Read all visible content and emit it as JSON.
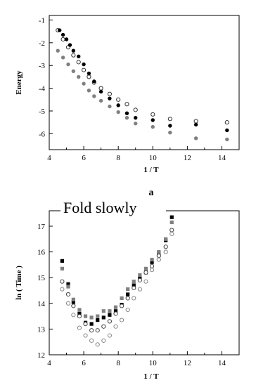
{
  "chart_data": [
    {
      "type": "scatter",
      "panel_label": "a",
      "title": "",
      "xlabel": "1 / T",
      "ylabel": "Energy",
      "xlim": [
        4,
        15
      ],
      "ylim": [
        -6.7,
        -0.8
      ],
      "xticks": [
        4,
        6,
        8,
        10,
        12,
        14
      ],
      "yticks": [
        -1,
        -2,
        -3,
        -4,
        -5,
        -6
      ],
      "grid": false,
      "series": [
        {
          "marker": "open-circle",
          "color": "#333333",
          "points": [
            [
              4.5,
              -1.45
            ],
            [
              4.8,
              -1.85
            ],
            [
              5.1,
              -2.2
            ],
            [
              5.4,
              -2.55
            ],
            [
              5.7,
              -2.85
            ],
            [
              6.0,
              -3.2
            ],
            [
              6.3,
              -3.5
            ],
            [
              6.6,
              -3.75
            ],
            [
              7.0,
              -4.0
            ],
            [
              7.5,
              -4.25
            ],
            [
              8.0,
              -4.5
            ],
            [
              8.5,
              -4.7
            ],
            [
              9.0,
              -4.95
            ],
            [
              10.0,
              -5.15
            ],
            [
              11.0,
              -5.35
            ],
            [
              12.5,
              -5.45
            ],
            [
              14.3,
              -5.5
            ]
          ]
        },
        {
          "marker": "filled-circle",
          "color": "#000000",
          "points": [
            [
              4.6,
              -1.45
            ],
            [
              4.8,
              -1.65
            ],
            [
              5.0,
              -1.85
            ],
            [
              5.2,
              -2.1
            ],
            [
              5.4,
              -2.35
            ],
            [
              5.7,
              -2.6
            ],
            [
              6.0,
              -2.95
            ],
            [
              6.3,
              -3.35
            ],
            [
              6.6,
              -3.7
            ],
            [
              7.0,
              -4.15
            ],
            [
              7.5,
              -4.45
            ],
            [
              8.0,
              -4.75
            ],
            [
              8.5,
              -5.1
            ],
            [
              9.0,
              -5.3
            ],
            [
              10.0,
              -5.4
            ],
            [
              11.0,
              -5.65
            ],
            [
              12.5,
              -5.6
            ],
            [
              14.3,
              -5.85
            ]
          ]
        },
        {
          "marker": "filled-circle",
          "color": "#808080",
          "points": [
            [
              4.5,
              -2.35
            ],
            [
              4.8,
              -2.65
            ],
            [
              5.1,
              -2.95
            ],
            [
              5.4,
              -3.25
            ],
            [
              5.7,
              -3.5
            ],
            [
              6.0,
              -3.8
            ],
            [
              6.3,
              -4.1
            ],
            [
              6.6,
              -4.35
            ],
            [
              7.0,
              -4.55
            ],
            [
              7.5,
              -4.8
            ],
            [
              8.0,
              -5.05
            ],
            [
              8.5,
              -5.3
            ],
            [
              9.0,
              -5.55
            ],
            [
              10.0,
              -5.7
            ],
            [
              11.0,
              -5.95
            ],
            [
              12.5,
              -6.2
            ],
            [
              14.3,
              -6.25
            ]
          ]
        }
      ]
    },
    {
      "type": "scatter",
      "panel_label": "",
      "title": "",
      "annotation": "Fold slowly",
      "xlabel": "1 / T",
      "ylabel": "ln ( Time )",
      "xlim": [
        4,
        15
      ],
      "ylim": [
        12,
        17.6
      ],
      "xticks": [
        4,
        6,
        8,
        10,
        12,
        14
      ],
      "yticks": [
        12,
        13,
        14,
        15,
        16,
        17
      ],
      "grid": false,
      "series": [
        {
          "marker": "filled-square",
          "color": "#000000",
          "points": [
            [
              4.75,
              15.65
            ],
            [
              5.1,
              14.75
            ],
            [
              5.4,
              14.05
            ],
            [
              5.75,
              13.6
            ],
            [
              6.1,
              13.25
            ],
            [
              6.45,
              13.2
            ],
            [
              6.8,
              13.35
            ],
            [
              7.15,
              13.45
            ],
            [
              7.5,
              13.55
            ],
            [
              7.85,
              13.7
            ],
            [
              8.2,
              13.95
            ],
            [
              8.55,
              14.35
            ],
            [
              8.9,
              14.7
            ],
            [
              9.25,
              15.0
            ],
            [
              9.6,
              15.2
            ],
            [
              9.95,
              15.6
            ],
            [
              10.35,
              15.95
            ],
            [
              10.75,
              16.45
            ],
            [
              11.1,
              17.35
            ]
          ]
        },
        {
          "marker": "filled-square",
          "color": "#808080",
          "points": [
            [
              4.75,
              15.35
            ],
            [
              5.1,
              14.65
            ],
            [
              5.4,
              14.15
            ],
            [
              5.75,
              13.75
            ],
            [
              6.1,
              13.5
            ],
            [
              6.45,
              13.45
            ],
            [
              6.8,
              13.5
            ],
            [
              7.15,
              13.7
            ],
            [
              7.5,
              13.7
            ],
            [
              7.85,
              13.85
            ],
            [
              8.2,
              14.2
            ],
            [
              8.55,
              14.55
            ],
            [
              8.9,
              14.85
            ],
            [
              9.25,
              15.1
            ],
            [
              9.6,
              15.35
            ],
            [
              9.95,
              15.7
            ],
            [
              10.35,
              16.0
            ],
            [
              10.75,
              16.5
            ],
            [
              11.1,
              17.15
            ]
          ]
        },
        {
          "marker": "open-circle",
          "color": "#444444",
          "points": [
            [
              4.75,
              14.85
            ],
            [
              5.1,
              14.35
            ],
            [
              5.4,
              13.9
            ],
            [
              5.75,
              13.5
            ],
            [
              6.1,
              13.2
            ],
            [
              6.45,
              12.95
            ],
            [
              6.8,
              12.95
            ],
            [
              7.15,
              13.1
            ],
            [
              7.5,
              13.3
            ],
            [
              7.85,
              13.6
            ],
            [
              8.2,
              13.9
            ],
            [
              8.55,
              14.2
            ],
            [
              8.9,
              14.6
            ],
            [
              9.25,
              14.9
            ],
            [
              9.6,
              15.2
            ],
            [
              9.95,
              15.45
            ],
            [
              10.35,
              15.85
            ],
            [
              10.75,
              16.2
            ],
            [
              11.1,
              16.85
            ]
          ]
        },
        {
          "marker": "open-circle",
          "color": "#888888",
          "points": [
            [
              4.75,
              14.55
            ],
            [
              5.1,
              14.0
            ],
            [
              5.4,
              13.55
            ],
            [
              5.75,
              13.05
            ],
            [
              6.1,
              12.75
            ],
            [
              6.45,
              12.55
            ],
            [
              6.8,
              12.4
            ],
            [
              7.15,
              12.55
            ],
            [
              7.5,
              12.75
            ],
            [
              7.85,
              13.1
            ],
            [
              8.2,
              13.35
            ],
            [
              8.55,
              13.75
            ],
            [
              8.9,
              14.2
            ],
            [
              9.25,
              14.55
            ],
            [
              9.6,
              14.85
            ],
            [
              9.95,
              15.3
            ],
            [
              10.35,
              15.7
            ],
            [
              10.75,
              16.0
            ],
            [
              11.1,
              16.7
            ]
          ]
        }
      ]
    }
  ]
}
